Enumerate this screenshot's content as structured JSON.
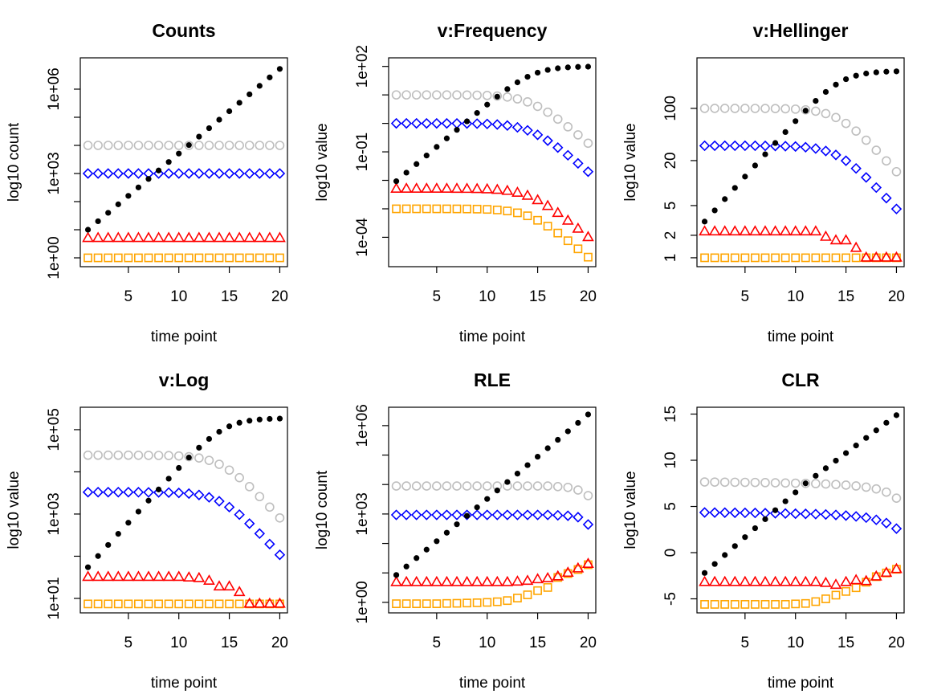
{
  "chart_data": [
    {
      "type": "scatter",
      "title": "Counts",
      "xlabel": "time point",
      "ylabel": "log10 count",
      "log_y": true,
      "x": [
        1,
        2,
        3,
        4,
        5,
        6,
        7,
        8,
        9,
        10,
        11,
        12,
        13,
        14,
        15,
        16,
        17,
        18,
        19,
        20
      ],
      "xlim": [
        0.24,
        20.76
      ],
      "xticks": [
        5,
        10,
        15,
        20
      ],
      "ylim": [
        0.485,
        13000000
      ],
      "yticks": [
        {
          "value": 1,
          "label": "1e+00"
        },
        {
          "value": 1000,
          "label": "1e+03"
        },
        {
          "value": 1000000,
          "label": "1e+06"
        }
      ],
      "yticks_minor": [
        10,
        100,
        10000,
        100000
      ],
      "series": [
        {
          "color": "#ffa500",
          "marker": "square",
          "values": [
            1,
            1,
            1,
            1,
            1,
            1,
            1,
            1,
            1,
            1,
            1,
            1,
            1,
            1,
            1,
            1,
            1,
            1,
            1,
            1
          ]
        },
        {
          "color": "#ff0000",
          "marker": "triangle",
          "values": [
            5,
            5,
            5,
            5,
            5,
            5,
            5,
            5,
            5,
            5,
            5,
            5,
            5,
            5,
            5,
            5,
            5,
            5,
            5,
            5
          ]
        },
        {
          "color": "#0000ff",
          "marker": "diamond",
          "values": [
            1000,
            1000,
            1000,
            1000,
            1000,
            1000,
            1000,
            1000,
            1000,
            1000,
            1000,
            1000,
            1000,
            1000,
            1000,
            1000,
            1000,
            1000,
            1000,
            1000
          ]
        },
        {
          "color": "#bebebe",
          "marker": "circle",
          "values": [
            10000,
            10000,
            10000,
            10000,
            10000,
            10000,
            10000,
            10000,
            10000,
            10000,
            10000,
            10000,
            10000,
            10000,
            10000,
            10000,
            10000,
            10000,
            10000,
            10000
          ]
        },
        {
          "color": "#000000",
          "marker": "dot",
          "values": [
            10,
            20,
            40,
            80,
            160,
            320,
            640,
            1280,
            2560,
            5120,
            10240,
            20480,
            40960,
            81920,
            163840,
            327680,
            655360,
            1310720,
            2621440,
            5242880
          ]
        }
      ]
    },
    {
      "type": "scatter",
      "title": "v:Frequency",
      "xlabel": "time point",
      "ylabel": "log10 value",
      "log_y": true,
      "x": [
        1,
        2,
        3,
        4,
        5,
        6,
        7,
        8,
        9,
        10,
        11,
        12,
        13,
        14,
        15,
        16,
        17,
        18,
        19,
        20
      ],
      "xlim": [
        0.24,
        20.76
      ],
      "xticks": [
        5,
        10,
        15,
        20
      ],
      "ylim": [
        9.3e-06,
        200
      ],
      "yticks": [
        {
          "value": 0.0001,
          "label": "1e-04"
        },
        {
          "value": 0.1,
          "label": "1e-01"
        },
        {
          "value": 100,
          "label": "1e+02"
        }
      ],
      "yticks_minor": [
        0.001,
        0.01,
        1,
        10
      ],
      "series": [
        {
          "color": "#ffa500",
          "marker": "square",
          "values": [
            0.001,
            0.001,
            0.001,
            0.001,
            0.000999,
            0.000997,
            0.000994,
            0.000988,
            0.000977,
            0.000955,
            0.000913,
            0.00084,
            0.000724,
            0.000568,
            0.000396,
            0.000247,
            0.000141,
            7.58e-05,
            3.94e-05,
            2.01e-05
          ]
        },
        {
          "color": "#ff0000",
          "marker": "triangle",
          "values": [
            0.005,
            0.005,
            0.005,
            0.005,
            0.005,
            0.00499,
            0.00497,
            0.00494,
            0.00488,
            0.00477,
            0.00457,
            0.0042,
            0.00362,
            0.00284,
            0.00198,
            0.00124,
            0.000705,
            0.000379,
            0.000197,
            0.0001
          ]
        },
        {
          "color": "#0000ff",
          "marker": "diamond",
          "values": [
            1,
            1,
            1,
            0.999,
            0.999,
            0.997,
            0.994,
            0.988,
            0.977,
            0.955,
            0.913,
            0.84,
            0.724,
            0.568,
            0.396,
            0.247,
            0.141,
            0.0758,
            0.0394,
            0.0201
          ]
        },
        {
          "color": "#bebebe",
          "marker": "circle",
          "values": [
            10,
            10,
            10,
            9.99,
            9.99,
            9.97,
            9.94,
            9.88,
            9.77,
            9.55,
            9.13,
            8.4,
            7.24,
            5.68,
            3.96,
            2.47,
            1.41,
            0.758,
            0.394,
            0.201
          ]
        },
        {
          "color": "#000000",
          "marker": "dot",
          "values": [
            0.0093,
            0.0186,
            0.0372,
            0.0743,
            0.149,
            0.297,
            0.592,
            1.18,
            2.32,
            4.55,
            8.69,
            16,
            27.6,
            43.2,
            60.4,
            75.3,
            85.9,
            92.4,
            96.1,
            98
          ]
        }
      ]
    },
    {
      "type": "scatter",
      "title": "v:Hellinger",
      "xlabel": "time point",
      "ylabel": "log10 value",
      "log_y": true,
      "x": [
        1,
        2,
        3,
        4,
        5,
        6,
        7,
        8,
        9,
        10,
        11,
        12,
        13,
        14,
        15,
        16,
        17,
        18,
        19,
        20
      ],
      "xlim": [
        0.24,
        20.76
      ],
      "xticks": [
        5,
        10,
        15,
        20
      ],
      "ylim": [
        0.76,
        475
      ],
      "yticks": [
        1,
        2,
        5,
        20,
        100
      ],
      "yticks_minor": [],
      "series": [
        {
          "color": "#ffa500",
          "marker": "square",
          "values": [
            1,
            1,
            1,
            1,
            1,
            1,
            1,
            1,
            1,
            1,
            1,
            1,
            1,
            1,
            1,
            1,
            1,
            1,
            1,
            1
          ]
        },
        {
          "color": "#ff0000",
          "marker": "triangle",
          "values": [
            2.24,
            2.24,
            2.24,
            2.24,
            2.24,
            2.24,
            2.24,
            2.24,
            2.24,
            2.24,
            2.24,
            2.24,
            1.9,
            1.7,
            1.7,
            1.35,
            1,
            1,
            1,
            1
          ]
        },
        {
          "color": "#0000ff",
          "marker": "diamond",
          "values": [
            31.6,
            31.6,
            31.6,
            31.6,
            31.6,
            31.6,
            31.5,
            31.4,
            31.2,
            30.9,
            30.2,
            29,
            26.9,
            23.8,
            19.9,
            15.7,
            11.9,
            8.7,
            6.3,
            4.5
          ]
        },
        {
          "color": "#bebebe",
          "marker": "circle",
          "values": [
            100,
            100,
            100,
            99.9,
            99.9,
            99.8,
            99.7,
            99.4,
            98.8,
            97.7,
            95.6,
            91.7,
            85.1,
            75.4,
            62.9,
            49.7,
            37.5,
            27.5,
            19.8,
            14.2
          ]
        },
        {
          "color": "#000000",
          "marker": "dot",
          "values": [
            3.05,
            4.31,
            6.1,
            8.62,
            12.2,
            17.2,
            24.3,
            34.4,
            48.2,
            67.5,
            93.2,
            126,
            166,
            208,
            246,
            274,
            293,
            304,
            310,
            313
          ]
        }
      ]
    },
    {
      "type": "scatter",
      "title": "v:Log",
      "xlabel": "time point",
      "ylabel": "log10 value",
      "log_y": true,
      "x": [
        1,
        2,
        3,
        4,
        5,
        6,
        7,
        8,
        9,
        10,
        11,
        12,
        13,
        14,
        15,
        16,
        17,
        18,
        19,
        20
      ],
      "xlim": [
        0.24,
        20.76
      ],
      "xticks": [
        5,
        10,
        15,
        20
      ],
      "ylim": [
        4.54,
        340000
      ],
      "yticks": [
        {
          "value": 10,
          "label": "1e+01"
        },
        {
          "value": 1000,
          "label": "1e+03"
        },
        {
          "value": 100000,
          "label": "1e+05"
        }
      ],
      "yticks_minor": [
        100,
        10000
      ],
      "series": [
        {
          "color": "#ffa500",
          "marker": "square",
          "values": [
            7.4,
            7.4,
            7.4,
            7.4,
            7.4,
            7.4,
            7.4,
            7.4,
            7.4,
            7.4,
            7.4,
            7.4,
            7.4,
            7.4,
            7.4,
            7.4,
            7.4,
            7.4,
            7.4,
            7.4
          ]
        },
        {
          "color": "#ff0000",
          "marker": "triangle",
          "values": [
            32,
            32,
            32,
            32,
            32,
            32,
            32,
            32,
            32,
            32,
            31,
            30,
            26,
            19,
            19,
            14,
            7.4,
            7.4,
            7.4,
            7.4
          ]
        },
        {
          "color": "#0000ff",
          "marker": "diamond",
          "values": [
            3300,
            3300,
            3300,
            3300,
            3300,
            3290,
            3270,
            3260,
            3230,
            3170,
            3050,
            2830,
            2490,
            2010,
            1460,
            968,
            593,
            344,
            194,
            108
          ]
        },
        {
          "color": "#bebebe",
          "marker": "circle",
          "values": [
            24800,
            24800,
            24800,
            24800,
            24800,
            24700,
            24600,
            24500,
            24300,
            23800,
            22900,
            21300,
            18700,
            15100,
            11000,
            7280,
            4460,
            2590,
            1460,
            809
          ]
        },
        {
          "color": "#000000",
          "marker": "dot",
          "values": [
            54.8,
            101,
            185,
            339,
            622,
            1140,
            2080,
            3820,
            6890,
            12400,
            21900,
            37400,
            60400,
            89300,
            120000,
            146000,
            163000,
            174000,
            180000,
            183000
          ]
        }
      ]
    },
    {
      "type": "scatter",
      "title": "RLE",
      "xlabel": "time point",
      "ylabel": "log10 count",
      "log_y": true,
      "x": [
        1,
        2,
        3,
        4,
        5,
        6,
        7,
        8,
        9,
        10,
        11,
        12,
        13,
        14,
        15,
        16,
        17,
        18,
        19,
        20
      ],
      "xlim": [
        0.24,
        20.76
      ],
      "xticks": [
        5,
        10,
        15,
        20
      ],
      "ylim": [
        0.44,
        4200000
      ],
      "yticks": [
        {
          "value": 1,
          "label": "1e+00"
        },
        {
          "value": 1000,
          "label": "1e+03"
        },
        {
          "value": 1000000,
          "label": "1e+06"
        }
      ],
      "yticks_minor": [
        10,
        100,
        10000,
        100000
      ],
      "series": [
        {
          "color": "#ffa500",
          "marker": "square",
          "values": [
            0.9,
            0.9,
            0.9,
            0.9,
            0.9,
            0.92,
            0.93,
            0.95,
            0.97,
            1,
            1.05,
            1.15,
            1.4,
            1.8,
            2.5,
            3.2,
            7,
            9.5,
            13,
            19
          ]
        },
        {
          "color": "#ff0000",
          "marker": "triangle",
          "values": [
            4.8,
            4.8,
            4.8,
            4.8,
            4.8,
            4.8,
            4.8,
            4.8,
            4.8,
            4.8,
            4.8,
            4.8,
            5,
            5.3,
            6,
            6.5,
            7.5,
            10,
            14,
            20
          ]
        },
        {
          "color": "#0000ff",
          "marker": "diamond",
          "values": [
            930,
            930,
            930,
            930,
            930,
            930,
            930,
            930,
            930,
            930,
            930,
            930,
            930,
            930,
            930,
            930,
            900,
            870,
            780,
            440
          ]
        },
        {
          "color": "#bebebe",
          "marker": "circle",
          "values": [
            8900,
            8900,
            8900,
            8900,
            8900,
            8900,
            8900,
            8900,
            8900,
            8900,
            8900,
            8900,
            8900,
            8900,
            8900,
            8900,
            8500,
            8000,
            6500,
            4200
          ]
        },
        {
          "color": "#000000",
          "marker": "dot",
          "values": [
            8.5,
            16.5,
            31.9,
            61.7,
            119,
            231,
            448,
            867,
            1680,
            3240,
            6280,
            12200,
            23500,
            45500,
            88100,
            171000,
            330000,
            640000,
            1240000,
            2390000
          ]
        }
      ]
    },
    {
      "type": "scatter",
      "title": "CLR",
      "xlabel": "time point",
      "ylabel": "log10 value",
      "log_y": false,
      "x": [
        1,
        2,
        3,
        4,
        5,
        6,
        7,
        8,
        9,
        10,
        11,
        12,
        13,
        14,
        15,
        16,
        17,
        18,
        19,
        20
      ],
      "xlim": [
        0.24,
        20.76
      ],
      "xticks": [
        5,
        10,
        15,
        20
      ],
      "ylim": [
        -6.52,
        15.74
      ],
      "yticks": [
        -5,
        0,
        5,
        10,
        15
      ],
      "yticks_minor": [],
      "series": [
        {
          "color": "#ffa500",
          "marker": "square",
          "values": [
            -5.6,
            -5.6,
            -5.6,
            -5.6,
            -5.6,
            -5.6,
            -5.6,
            -5.6,
            -5.6,
            -5.55,
            -5.5,
            -5.3,
            -5,
            -4.6,
            -4.2,
            -3.8,
            -3.2,
            -2.6,
            -2.2,
            -1.8
          ]
        },
        {
          "color": "#ff0000",
          "marker": "triangle",
          "values": [
            -3.2,
            -3.2,
            -3.2,
            -3.2,
            -3.2,
            -3.2,
            -3.2,
            -3.2,
            -3.2,
            -3.2,
            -3.2,
            -3.2,
            -3.3,
            -3.5,
            -3.2,
            -3,
            -3.1,
            -2.6,
            -2.2,
            -1.8
          ]
        },
        {
          "color": "#0000ff",
          "marker": "diamond",
          "values": [
            4.35,
            4.34,
            4.33,
            4.32,
            4.31,
            4.3,
            4.28,
            4.26,
            4.24,
            4.22,
            4.2,
            4.17,
            4.13,
            4.08,
            4.01,
            3.92,
            3.79,
            3.55,
            3.2,
            2.6
          ]
        },
        {
          "color": "#bebebe",
          "marker": "circle",
          "values": [
            7.65,
            7.64,
            7.63,
            7.62,
            7.61,
            7.6,
            7.58,
            7.56,
            7.54,
            7.52,
            7.5,
            7.47,
            7.43,
            7.38,
            7.31,
            7.22,
            7.09,
            6.9,
            6.55,
            5.9
          ]
        },
        {
          "color": "#000000",
          "marker": "dot",
          "values": [
            -2.2,
            -1.23,
            -0.26,
            0.71,
            1.68,
            2.65,
            3.62,
            4.59,
            5.56,
            6.53,
            7.5,
            8.32,
            9.14,
            9.96,
            10.78,
            11.6,
            12.42,
            13.24,
            14.06,
            14.88
          ]
        }
      ]
    }
  ]
}
